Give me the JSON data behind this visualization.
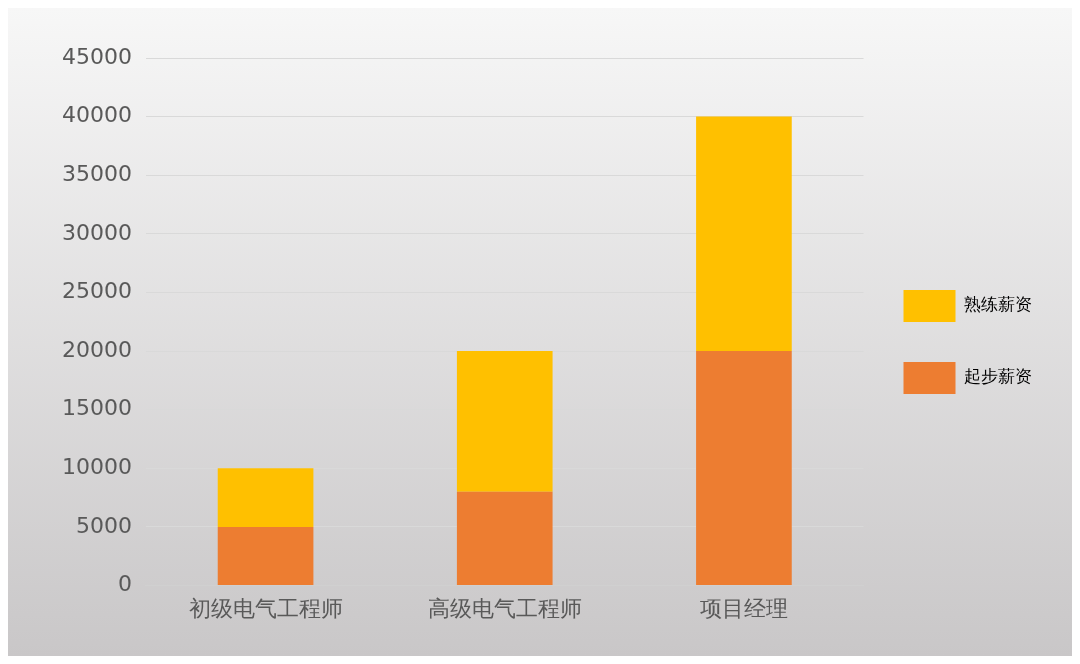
{
  "chart_data": {
    "type": "bar",
    "stacked": true,
    "categories": [
      "初级电气工程师",
      "高级电气工程师",
      "项目经理"
    ],
    "series": [
      {
        "name": "起步薪资",
        "color": "#ed7d31",
        "values": [
          5000,
          8000,
          20000
        ]
      },
      {
        "name": "熟练薪资",
        "color": "#ffc000",
        "values": [
          5000,
          12000,
          20000
        ]
      }
    ],
    "ylim": [
      0,
      45000
    ],
    "yticks": [
      0,
      5000,
      10000,
      15000,
      20000,
      25000,
      30000,
      35000,
      40000,
      45000
    ],
    "grid": "y",
    "legend": "right"
  }
}
